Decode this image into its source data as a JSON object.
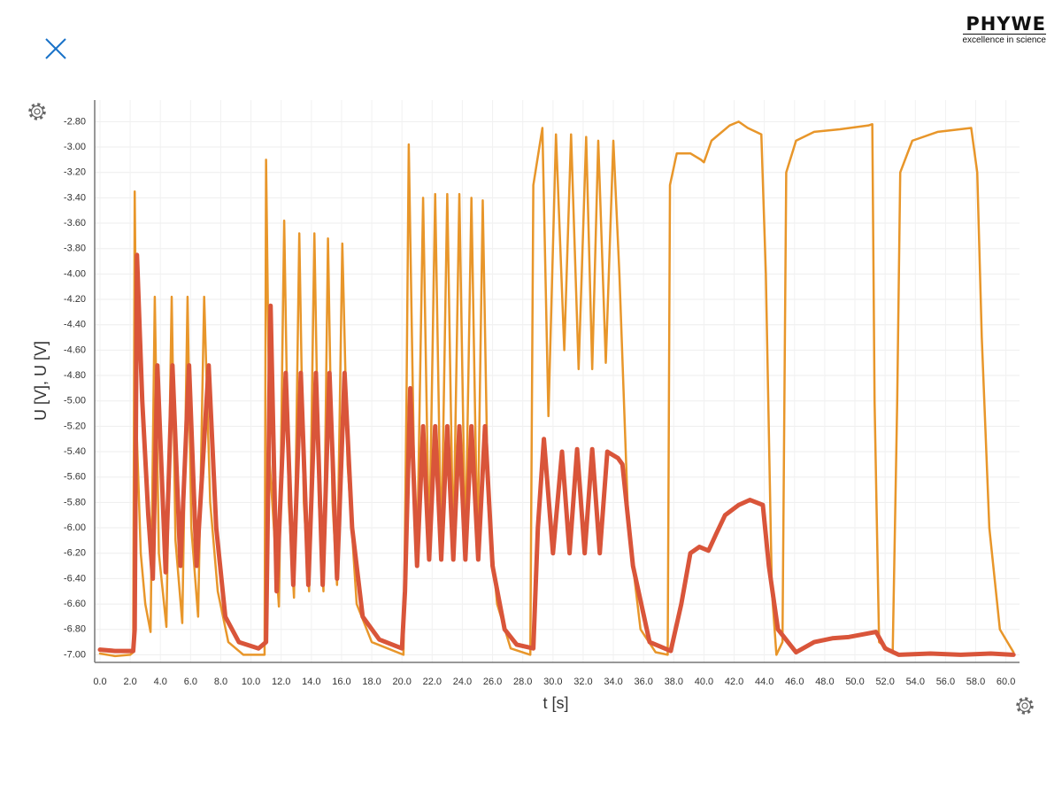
{
  "header": {
    "logo": "PHYWE",
    "tagline": "excellence in science"
  },
  "chart_data": {
    "type": "line",
    "x_label": "t [s]",
    "y_label": "U [V], U [V]",
    "xlim": [
      -0.35,
      60.9
    ],
    "ylim": [
      -7.06,
      -2.63
    ],
    "grid": true,
    "xticks": [
      {
        "value": 0,
        "label": "0.0"
      },
      {
        "value": 2,
        "label": "2.0"
      },
      {
        "value": 4,
        "label": "4.0"
      },
      {
        "value": 6,
        "label": "6.0"
      },
      {
        "value": 8,
        "label": "8.0"
      },
      {
        "value": 10,
        "label": "10.0"
      },
      {
        "value": 12,
        "label": "12.0"
      },
      {
        "value": 14,
        "label": "14.0"
      },
      {
        "value": 16,
        "label": "16.0"
      },
      {
        "value": 18,
        "label": "18.0"
      },
      {
        "value": 20,
        "label": "20.0"
      },
      {
        "value": 22,
        "label": "22.0"
      },
      {
        "value": 24,
        "label": "24.0"
      },
      {
        "value": 26,
        "label": "26.0"
      },
      {
        "value": 28,
        "label": "28.0"
      },
      {
        "value": 30,
        "label": "30.0"
      },
      {
        "value": 32,
        "label": "32.0"
      },
      {
        "value": 34,
        "label": "34.0"
      },
      {
        "value": 36,
        "label": "36.0"
      },
      {
        "value": 38,
        "label": "38.0"
      },
      {
        "value": 40,
        "label": "40.0"
      },
      {
        "value": 42,
        "label": "42.0"
      },
      {
        "value": 44,
        "label": "44.0"
      },
      {
        "value": 46,
        "label": "46.0"
      },
      {
        "value": 48,
        "label": "48.0"
      },
      {
        "value": 50,
        "label": "50.0"
      },
      {
        "value": 52,
        "label": "52.0"
      },
      {
        "value": 54,
        "label": "54.0"
      },
      {
        "value": 56,
        "label": "56.0"
      },
      {
        "value": 58,
        "label": "58.0"
      },
      {
        "value": 60,
        "label": "60.0"
      }
    ],
    "yticks": [
      {
        "value": -7,
        "label": "-7.00"
      },
      {
        "value": -6.8,
        "label": "-6.80"
      },
      {
        "value": -6.6,
        "label": "-6.60"
      },
      {
        "value": -6.4,
        "label": "-6.40"
      },
      {
        "value": -6.2,
        "label": "-6.20"
      },
      {
        "value": -6,
        "label": "-6.00"
      },
      {
        "value": -5.8,
        "label": "-5.80"
      },
      {
        "value": -5.6,
        "label": "-5.60"
      },
      {
        "value": -5.4,
        "label": "-5.40"
      },
      {
        "value": -5.2,
        "label": "-5.20"
      },
      {
        "value": -5,
        "label": "-5.00"
      },
      {
        "value": -4.8,
        "label": "-4.80"
      },
      {
        "value": -4.6,
        "label": "-4.60"
      },
      {
        "value": -4.4,
        "label": "-4.40"
      },
      {
        "value": -4.2,
        "label": "-4.20"
      },
      {
        "value": -4,
        "label": "-4.00"
      },
      {
        "value": -3.8,
        "label": "-3.80"
      },
      {
        "value": -3.6,
        "label": "-3.60"
      },
      {
        "value": -3.4,
        "label": "-3.40"
      },
      {
        "value": -3.2,
        "label": "-3.20"
      },
      {
        "value": -3,
        "label": "-3.00"
      },
      {
        "value": -2.8,
        "label": "-2.80"
      }
    ],
    "series": [
      {
        "color": "#e8962a",
        "width": 2.5,
        "x": [
          0,
          1,
          2.0,
          2.2,
          2.3,
          2.45,
          2.7,
          3.0,
          3.35,
          3.63,
          3.9,
          4.4,
          4.75,
          5.0,
          5.45,
          5.8,
          6.05,
          6.5,
          6.9,
          7.3,
          7.8,
          8.5,
          9.5,
          10.9,
          11.0,
          11.25,
          11.85,
          12.2,
          12.5,
          12.85,
          13.2,
          13.5,
          13.85,
          14.2,
          14.5,
          14.8,
          15.1,
          15.4,
          15.7,
          16.05,
          16.4,
          17.0,
          18.0,
          20.1,
          20.3,
          20.45,
          20.8,
          21.0,
          21.4,
          21.8,
          22.2,
          22.6,
          23.0,
          23.4,
          23.8,
          24.2,
          24.6,
          25.0,
          25.35,
          25.7,
          26.3,
          27.2,
          28.5,
          28.7,
          29.3,
          29.7,
          30.2,
          30.75,
          31.2,
          31.7,
          32.2,
          32.6,
          33.0,
          33.5,
          34.0,
          34.4,
          35.0,
          35.8,
          36.8,
          37.6,
          37.75,
          38.2,
          39.1,
          39.8,
          40.0,
          40.5,
          41.7,
          42.3,
          42.9,
          43.8,
          44.1,
          44.5,
          44.8,
          45.2,
          45.45,
          46.1,
          47.3,
          49.0,
          50.9,
          51.15,
          51.3,
          51.6,
          52.5,
          52.8,
          53.0,
          53.8,
          55.5,
          57.7,
          58.1,
          58.4,
          58.9,
          59.6,
          60.5
        ],
        "values": [
          -6.99,
          -7.01,
          -7.0,
          -6.98,
          -3.35,
          -5.3,
          -6.2,
          -6.6,
          -6.82,
          -4.18,
          -6.2,
          -6.78,
          -4.18,
          -6.1,
          -6.75,
          -4.18,
          -6.0,
          -6.7,
          -4.18,
          -5.8,
          -6.5,
          -6.9,
          -7.0,
          -7.0,
          -3.1,
          -5.5,
          -6.62,
          -3.58,
          -5.8,
          -6.55,
          -3.68,
          -5.8,
          -6.5,
          -3.68,
          -5.8,
          -6.5,
          -3.72,
          -5.8,
          -6.45,
          -3.76,
          -5.5,
          -6.6,
          -6.9,
          -7.0,
          -5.0,
          -2.98,
          -5.5,
          -6.25,
          -3.4,
          -6.2,
          -3.37,
          -6.2,
          -3.37,
          -6.2,
          -3.37,
          -6.2,
          -3.4,
          -6.2,
          -3.42,
          -5.8,
          -6.6,
          -6.95,
          -7.0,
          -3.3,
          -2.85,
          -5.12,
          -2.9,
          -4.6,
          -2.9,
          -4.75,
          -2.92,
          -4.75,
          -2.95,
          -4.7,
          -2.95,
          -4.0,
          -6.0,
          -6.8,
          -6.98,
          -7.0,
          -3.3,
          -3.05,
          -3.05,
          -3.1,
          -3.12,
          -2.95,
          -2.83,
          -2.8,
          -2.85,
          -2.9,
          -4.0,
          -6.5,
          -7.0,
          -6.9,
          -3.2,
          -2.95,
          -2.88,
          -2.86,
          -2.83,
          -2.82,
          -5.0,
          -6.9,
          -6.98,
          -5.0,
          -3.2,
          -2.95,
          -2.88,
          -2.85,
          -3.2,
          -4.5,
          -6.0,
          -6.8,
          -6.98
        ]
      },
      {
        "color": "#d9553a",
        "width": 5,
        "x": [
          0,
          1,
          2.2,
          2.3,
          2.45,
          2.8,
          3.2,
          3.5,
          3.8,
          4.35,
          4.8,
          5.33,
          5.9,
          6.4,
          7.2,
          7.7,
          8.3,
          9.2,
          10.5,
          11.0,
          11.3,
          11.7,
          12.3,
          12.8,
          13.3,
          13.8,
          14.3,
          14.75,
          15.2,
          15.7,
          16.2,
          16.7,
          17.4,
          18.5,
          20.0,
          20.2,
          20.55,
          21.0,
          21.4,
          21.8,
          22.2,
          22.6,
          23.0,
          23.4,
          23.8,
          24.2,
          24.6,
          25.05,
          25.5,
          26.0,
          26.8,
          27.6,
          28.7,
          29.0,
          29.4,
          30.0,
          30.6,
          31.1,
          31.6,
          32.1,
          32.6,
          33.1,
          33.6,
          34.3,
          34.6,
          35.3,
          36.4,
          37.8,
          38.5,
          39.1,
          39.7,
          40.3,
          40.8,
          41.4,
          42.3,
          43.05,
          43.9,
          44.3,
          44.9,
          46.1,
          47.3,
          48.5,
          49.6,
          51.4,
          52.0,
          52.9,
          55.0,
          57.0,
          59.0,
          60.5
        ],
        "values": [
          -6.96,
          -6.97,
          -6.97,
          -6.8,
          -3.85,
          -5.0,
          -5.9,
          -6.4,
          -4.72,
          -6.35,
          -4.72,
          -6.3,
          -4.72,
          -6.3,
          -4.72,
          -6.0,
          -6.7,
          -6.9,
          -6.95,
          -6.9,
          -4.25,
          -6.5,
          -4.78,
          -6.45,
          -4.78,
          -6.45,
          -4.78,
          -6.45,
          -4.78,
          -6.4,
          -4.78,
          -6.0,
          -6.7,
          -6.88,
          -6.95,
          -6.5,
          -4.9,
          -6.3,
          -5.2,
          -6.25,
          -5.2,
          -6.25,
          -5.2,
          -6.25,
          -5.2,
          -6.25,
          -5.2,
          -6.25,
          -5.2,
          -6.3,
          -6.8,
          -6.92,
          -6.95,
          -6.0,
          -5.3,
          -6.2,
          -5.4,
          -6.2,
          -5.38,
          -6.2,
          -5.38,
          -6.2,
          -5.4,
          -5.45,
          -5.5,
          -6.3,
          -6.9,
          -6.97,
          -6.6,
          -6.2,
          -6.15,
          -6.18,
          -6.05,
          -5.9,
          -5.82,
          -5.78,
          -5.82,
          -6.3,
          -6.8,
          -6.98,
          -6.9,
          -6.87,
          -6.86,
          -6.82,
          -6.95,
          -7.0,
          -6.99,
          -7.0,
          -6.99,
          -7.0
        ]
      }
    ]
  }
}
